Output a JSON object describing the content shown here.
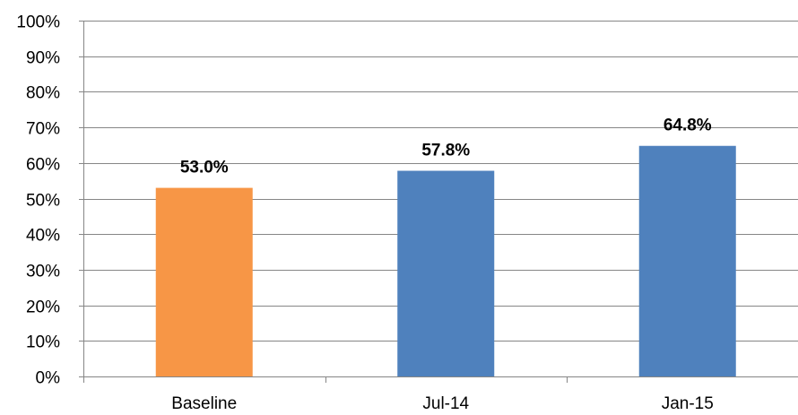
{
  "chart_data": {
    "type": "bar",
    "title": "",
    "xlabel": "",
    "ylabel": "",
    "categories": [
      "Baseline",
      "Jul-14",
      "Jan-15"
    ],
    "values": [
      53.0,
      57.8,
      64.8
    ],
    "data_labels": [
      "53.0%",
      "57.8%",
      "64.8%"
    ],
    "bar_colors": [
      "#F79646",
      "#4F81BD",
      "#4F81BD"
    ],
    "ylim": [
      0,
      100
    ],
    "y_ticks": [
      0,
      10,
      20,
      30,
      40,
      50,
      60,
      70,
      80,
      90,
      100
    ],
    "y_tick_labels": [
      "0%",
      "10%",
      "20%",
      "30%",
      "40%",
      "50%",
      "60%",
      "70%",
      "80%",
      "90%",
      "100%"
    ],
    "grid": true,
    "legend": "none",
    "gridline_color": "#868686",
    "axis_color": "#868686"
  }
}
